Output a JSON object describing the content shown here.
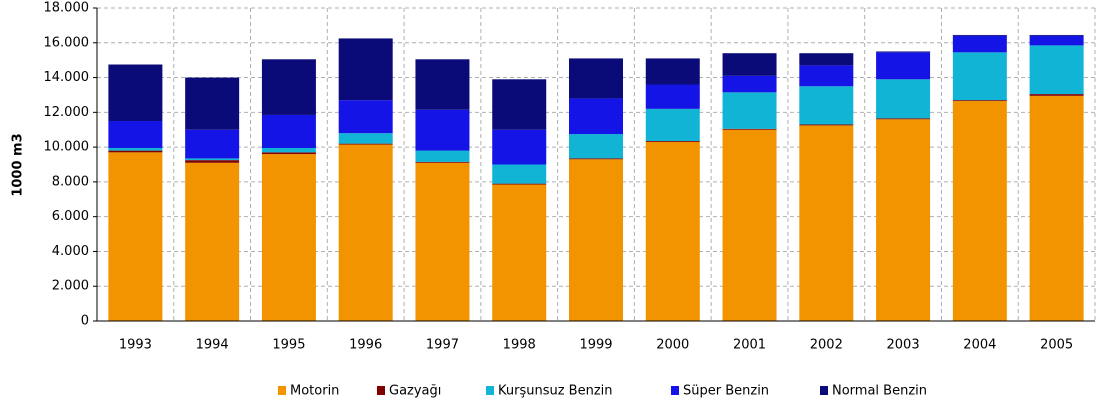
{
  "chart_data": {
    "type": "stacked_bar",
    "y_label": "1000 m3",
    "categories": [
      "1993",
      "1994",
      "1995",
      "1996",
      "1997",
      "1998",
      "1999",
      "2000",
      "2001",
      "2002",
      "2003",
      "2004",
      "2005"
    ],
    "series": [
      {
        "name": "Motorin",
        "color": "#f29400",
        "values": [
          9700,
          9100,
          9600,
          10150,
          9100,
          7850,
          9300,
          10300,
          11000,
          11250,
          11600,
          12650,
          12950
        ]
      },
      {
        "name": "Gazyağı",
        "color": "#800000",
        "values": [
          100,
          150,
          100,
          50,
          50,
          50,
          50,
          50,
          50,
          50,
          50,
          50,
          100
        ]
      },
      {
        "name": "Kurşunsuz Benzin",
        "color": "#12b4d6",
        "values": [
          150,
          100,
          250,
          600,
          650,
          1100,
          1400,
          1850,
          2100,
          2200,
          2250,
          2750,
          2800
        ]
      },
      {
        "name": "Süper Benzin",
        "color": "#1414e6",
        "values": [
          1550,
          1650,
          1900,
          1900,
          2350,
          2000,
          2050,
          1400,
          950,
          1200,
          1550,
          950,
          550
        ]
      },
      {
        "name": "Normal Benzin",
        "color": "#0a0a78",
        "values": [
          3250,
          3000,
          3200,
          3550,
          2900,
          2900,
          2300,
          1500,
          1300,
          700,
          50,
          50,
          50
        ]
      }
    ],
    "ylim": [
      0,
      18000
    ],
    "yticks": [
      0,
      {
        "value": 2000,
        "label": "2.000"
      },
      {
        "value": 4000,
        "label": "4.000"
      },
      {
        "value": 6000,
        "label": "6.000"
      },
      {
        "value": 8000,
        "label": "8.000"
      },
      {
        "value": 10000,
        "label": "10.000"
      },
      {
        "value": 12000,
        "label": "12.000"
      },
      {
        "value": 14000,
        "label": "14.000"
      },
      {
        "value": 16000,
        "label": "16.000"
      },
      {
        "value": 18000,
        "label": "18.000"
      }
    ],
    "grid": true,
    "legend": "bottom"
  }
}
